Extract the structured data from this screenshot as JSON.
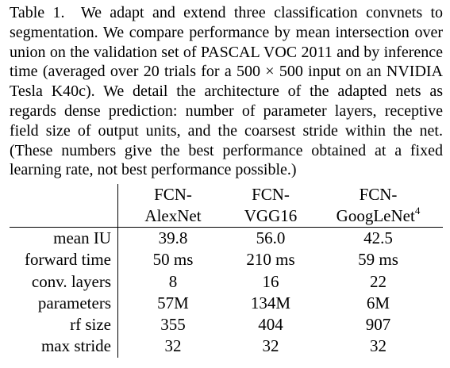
{
  "caption": {
    "label": "Table 1.",
    "text": "We adapt and extend three classification convnets to segmentation. We compare performance by mean intersection over union on the validation set of PASCAL VOC 2011 and by inference time (averaged over 20 trials for a 500 × 500 input on an NVIDIA Tesla K40c). We detail the architecture of the adapted nets as regards dense prediction: number of parameter layers, receptive field size of output units, and the coarsest stride within the net. (These numbers give the best performance obtained at a fixed learning rate, not best performance possible.)"
  },
  "table": {
    "columns": [
      {
        "line1": "FCN-",
        "line2": "AlexNet",
        "sup": ""
      },
      {
        "line1": "FCN-",
        "line2": "VGG16",
        "sup": ""
      },
      {
        "line1": "FCN-",
        "line2": "GoogLeNet",
        "sup": "4"
      }
    ],
    "rows": [
      {
        "label": "mean IU",
        "values": [
          "39.8",
          "56.0",
          "42.5"
        ]
      },
      {
        "label": "forward time",
        "values": [
          "50 ms",
          "210 ms",
          "59 ms"
        ]
      },
      {
        "label": "conv. layers",
        "values": [
          "8",
          "16",
          "22"
        ]
      },
      {
        "label": "parameters",
        "values": [
          "57M",
          "134M",
          "6M"
        ]
      },
      {
        "label": "rf size",
        "values": [
          "355",
          "404",
          "907"
        ]
      },
      {
        "label": "max stride",
        "values": [
          "32",
          "32",
          "32"
        ]
      }
    ]
  }
}
